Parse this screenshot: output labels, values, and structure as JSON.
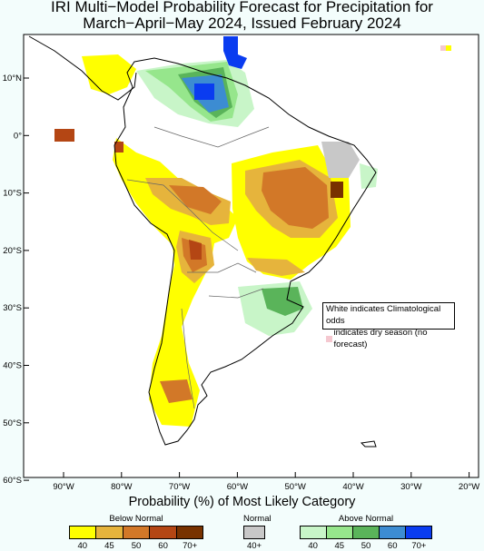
{
  "title_line1": "IRI Multi−Model Probability Forecast for Precipitation for",
  "title_line2": "March−April−May 2024, Issued February 2024",
  "note": {
    "line1": "White indicates Climatological odds",
    "line2": "indicates dry season (no forecast)",
    "dry_color": "#f5c8d0"
  },
  "colorbar": {
    "title": "Probability (%) of Most Likely Category",
    "below": {
      "label": "Below Normal",
      "colors": [
        "#ffff00",
        "#e6b43c",
        "#d27828",
        "#b44614",
        "#783200"
      ],
      "ticks": [
        "40",
        "45",
        "50",
        "60",
        "70+"
      ]
    },
    "normal": {
      "label": "Normal",
      "colors": [
        "#c8c8c8"
      ],
      "ticks": [
        "40+"
      ]
    },
    "above": {
      "label": "Above Normal",
      "colors": [
        "#c8f5c8",
        "#96e68c",
        "#5ab45a",
        "#3c8cd2",
        "#0a3cf0"
      ],
      "ticks": [
        "40",
        "45",
        "50",
        "60",
        "70+"
      ]
    }
  },
  "axes": {
    "lat_labels": [
      "10°N",
      "0°",
      "10°S",
      "20°S",
      "30°S",
      "40°S",
      "50°S",
      "60°S"
    ],
    "lon_labels": [
      "90°W",
      "80°W",
      "70°W",
      "60°W",
      "50°W",
      "40°W",
      "30°W",
      "20°W"
    ]
  }
}
